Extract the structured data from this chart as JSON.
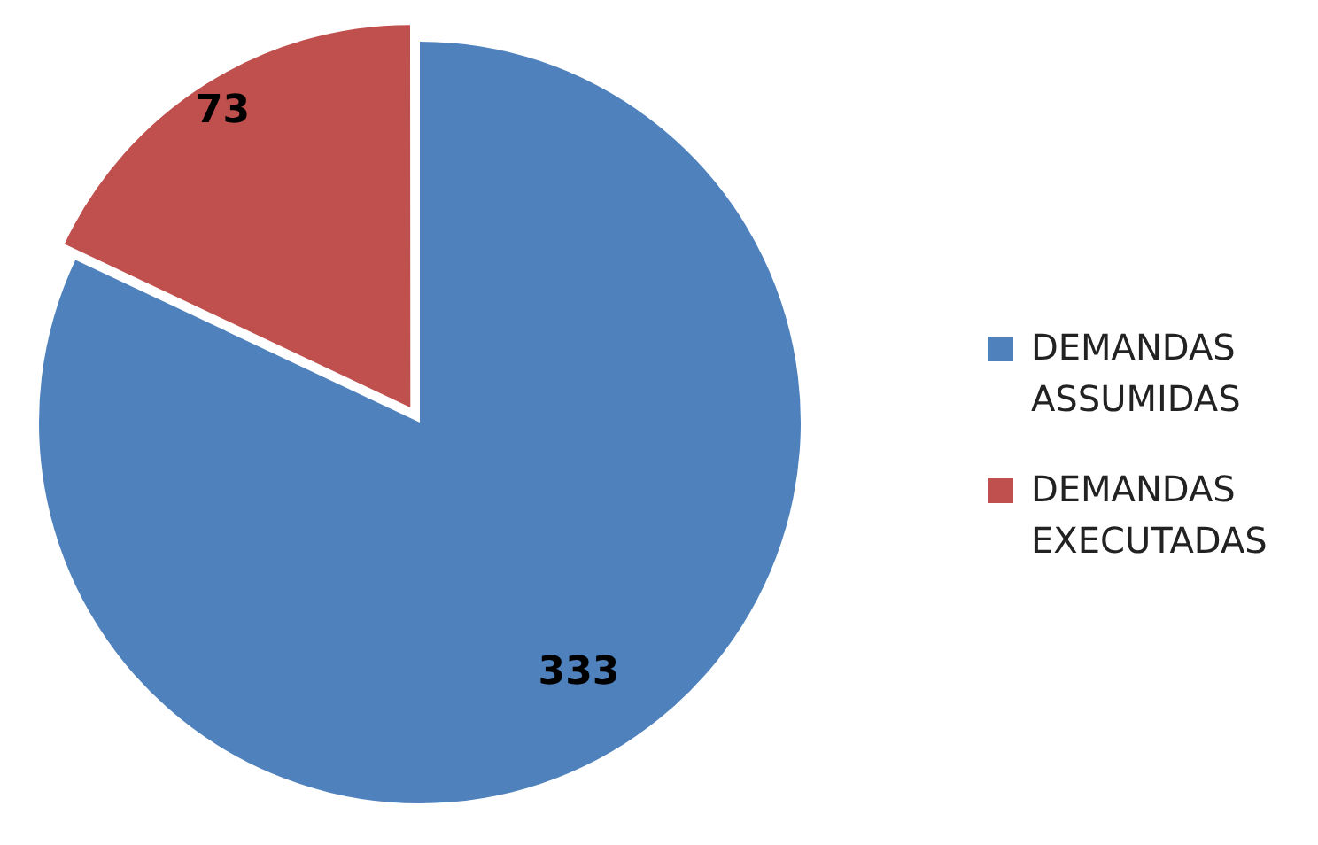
{
  "chart_data": {
    "type": "pie",
    "categories": [
      "DEMANDAS ASSUMIDAS",
      "DEMANDAS EXECUTADAS"
    ],
    "values": [
      333,
      73
    ],
    "colors": [
      "#4f81bd",
      "#c0504d"
    ],
    "data_labels": true,
    "legend": "right"
  }
}
